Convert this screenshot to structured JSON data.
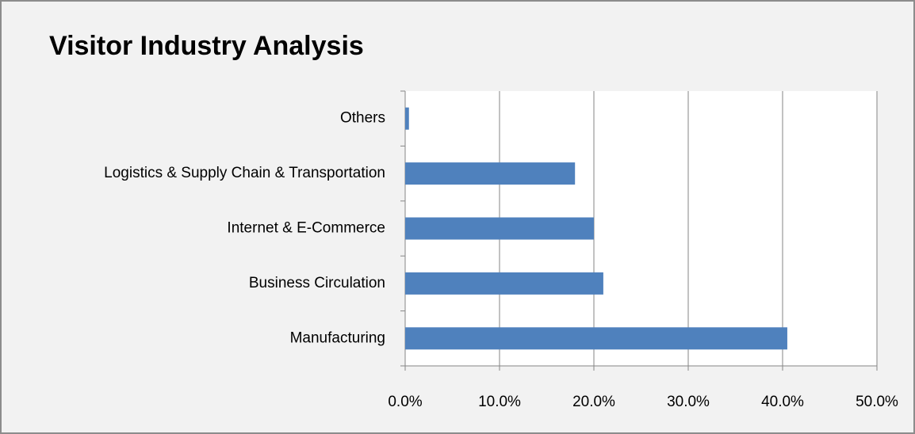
{
  "chart_data": {
    "type": "bar",
    "orientation": "horizontal",
    "title": "Visitor Industry Analysis",
    "categories": [
      "Others",
      "Logistics & Supply Chain & Transportation",
      "Internet & E-Commerce",
      "Business Circulation",
      "Manufacturing"
    ],
    "values": [
      0.4,
      18,
      20,
      21,
      40.5
    ],
    "color": "#4f81bd",
    "xlim": [
      0,
      50
    ],
    "xticks": [
      {
        "value": 0,
        "label": "0.0%"
      },
      {
        "value": 10,
        "label": "10.0%"
      },
      {
        "value": 20,
        "label": "20.0%"
      },
      {
        "value": 30,
        "label": "30.0%"
      },
      {
        "value": 40,
        "label": "40.0%"
      },
      {
        "value": 50,
        "label": "50.0%"
      }
    ],
    "grid": true
  }
}
